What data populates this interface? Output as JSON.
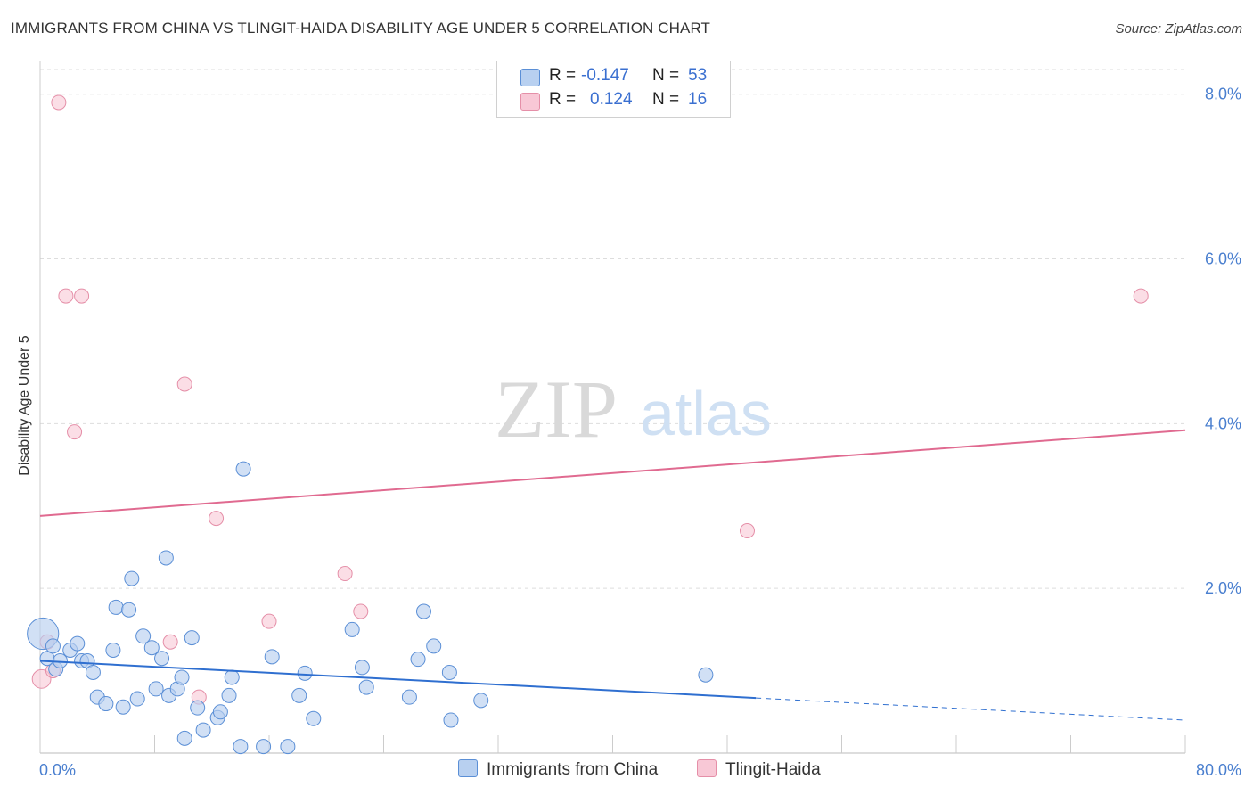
{
  "title": "IMMIGRANTS FROM CHINA VS TLINGIT-HAIDA DISABILITY AGE UNDER 5 CORRELATION CHART",
  "source": "Source: ZipAtlas.com",
  "watermark": {
    "zip": "ZIP",
    "atlas": "atlas"
  },
  "legend": {
    "rows": [
      {
        "r_label": "R =",
        "r_value": "-0.147",
        "n_label": "N =",
        "n_value": "53"
      },
      {
        "r_label": "R =",
        "r_value": "0.124",
        "n_label": "N =",
        "n_value": "16"
      }
    ]
  },
  "colors": {
    "china_fill": "#b8d0f0",
    "china_stroke": "#5b8fd6",
    "china_line": "#2f6fd0",
    "tlingit_fill": "#f8c8d6",
    "tlingit_stroke": "#e58fa8",
    "tlingit_line": "#e06a90",
    "grid": "#dddddd",
    "tick_text": "#4a7fcf"
  },
  "chart_data": {
    "type": "scatter",
    "title": "IMMIGRANTS FROM CHINA VS TLINGIT-HAIDA DISABILITY AGE UNDER 5 CORRELATION CHART",
    "xlabel": "",
    "ylabel": "Disability Age Under 5",
    "xlim": [
      0,
      80
    ],
    "ylim": [
      0,
      8.3
    ],
    "x_tick_labels": [
      "0.0%",
      "80.0%"
    ],
    "y_ticks": [
      2,
      4,
      6,
      8
    ],
    "y_tick_labels": [
      "2.0%",
      "4.0%",
      "6.0%",
      "8.0%"
    ],
    "series": [
      {
        "name": "Immigrants from China",
        "r": -0.147,
        "n": 53,
        "trend": {
          "x0": 0,
          "y0": 1.12,
          "x1": 50,
          "y1": 0.67,
          "dash_x1": 80,
          "dash_y1": 0.4
        },
        "points": [
          [
            0.2,
            1.45,
            2.2
          ],
          [
            0.5,
            1.15,
            1
          ],
          [
            0.9,
            1.3,
            1
          ],
          [
            1.1,
            1.02,
            1
          ],
          [
            1.4,
            1.12,
            1
          ],
          [
            2.1,
            1.25,
            1
          ],
          [
            2.6,
            1.33,
            1
          ],
          [
            2.9,
            1.12,
            1
          ],
          [
            3.3,
            1.12,
            1
          ],
          [
            3.7,
            0.98,
            1
          ],
          [
            4.0,
            0.68,
            1
          ],
          [
            4.6,
            0.6,
            1
          ],
          [
            5.1,
            1.25,
            1
          ],
          [
            5.3,
            1.77,
            1
          ],
          [
            5.8,
            0.56,
            1
          ],
          [
            6.2,
            1.74,
            1
          ],
          [
            6.4,
            2.12,
            1
          ],
          [
            6.8,
            0.66,
            1
          ],
          [
            7.2,
            1.42,
            1
          ],
          [
            7.8,
            1.28,
            1
          ],
          [
            8.1,
            0.78,
            1
          ],
          [
            8.5,
            1.15,
            1
          ],
          [
            8.8,
            2.37,
            1
          ],
          [
            9.0,
            0.7,
            1
          ],
          [
            9.6,
            0.78,
            1
          ],
          [
            9.9,
            0.92,
            1
          ],
          [
            10.1,
            0.18,
            1
          ],
          [
            10.6,
            1.4,
            1
          ],
          [
            11.0,
            0.55,
            1
          ],
          [
            11.4,
            0.28,
            1
          ],
          [
            12.4,
            0.43,
            1
          ],
          [
            12.6,
            0.5,
            1
          ],
          [
            13.2,
            0.7,
            1
          ],
          [
            13.4,
            0.92,
            1
          ],
          [
            14.0,
            0.08,
            1
          ],
          [
            14.2,
            3.45,
            1
          ],
          [
            15.6,
            0.08,
            1
          ],
          [
            16.2,
            1.17,
            1
          ],
          [
            17.3,
            0.08,
            1
          ],
          [
            18.1,
            0.7,
            1
          ],
          [
            18.5,
            0.97,
            1
          ],
          [
            19.1,
            0.42,
            1
          ],
          [
            21.8,
            1.5,
            1
          ],
          [
            22.5,
            1.04,
            1
          ],
          [
            22.8,
            0.8,
            1
          ],
          [
            25.8,
            0.68,
            1
          ],
          [
            26.4,
            1.14,
            1
          ],
          [
            26.8,
            1.72,
            1
          ],
          [
            27.5,
            1.3,
            1
          ],
          [
            28.6,
            0.98,
            1
          ],
          [
            28.7,
            0.4,
            1
          ],
          [
            30.8,
            0.64,
            1
          ],
          [
            46.5,
            0.95,
            1
          ]
        ]
      },
      {
        "name": "Tlingit-Haida",
        "r": 0.124,
        "n": 16,
        "trend": {
          "x0": 0,
          "y0": 2.88,
          "x1": 80,
          "y1": 3.92
        },
        "points": [
          [
            0.1,
            0.9,
            1.3
          ],
          [
            0.5,
            1.35,
            1
          ],
          [
            0.9,
            1.0,
            1
          ],
          [
            1.3,
            7.9,
            1
          ],
          [
            1.8,
            5.55,
            1
          ],
          [
            2.4,
            3.9,
            1
          ],
          [
            2.9,
            5.55,
            1
          ],
          [
            9.1,
            1.35,
            1
          ],
          [
            10.1,
            4.48,
            1
          ],
          [
            11.1,
            0.68,
            1
          ],
          [
            12.3,
            2.85,
            1
          ],
          [
            16.0,
            1.6,
            1
          ],
          [
            21.3,
            2.18,
            1
          ],
          [
            22.4,
            1.72,
            1
          ],
          [
            49.4,
            2.7,
            1
          ],
          [
            76.9,
            5.55,
            1
          ]
        ]
      }
    ]
  }
}
